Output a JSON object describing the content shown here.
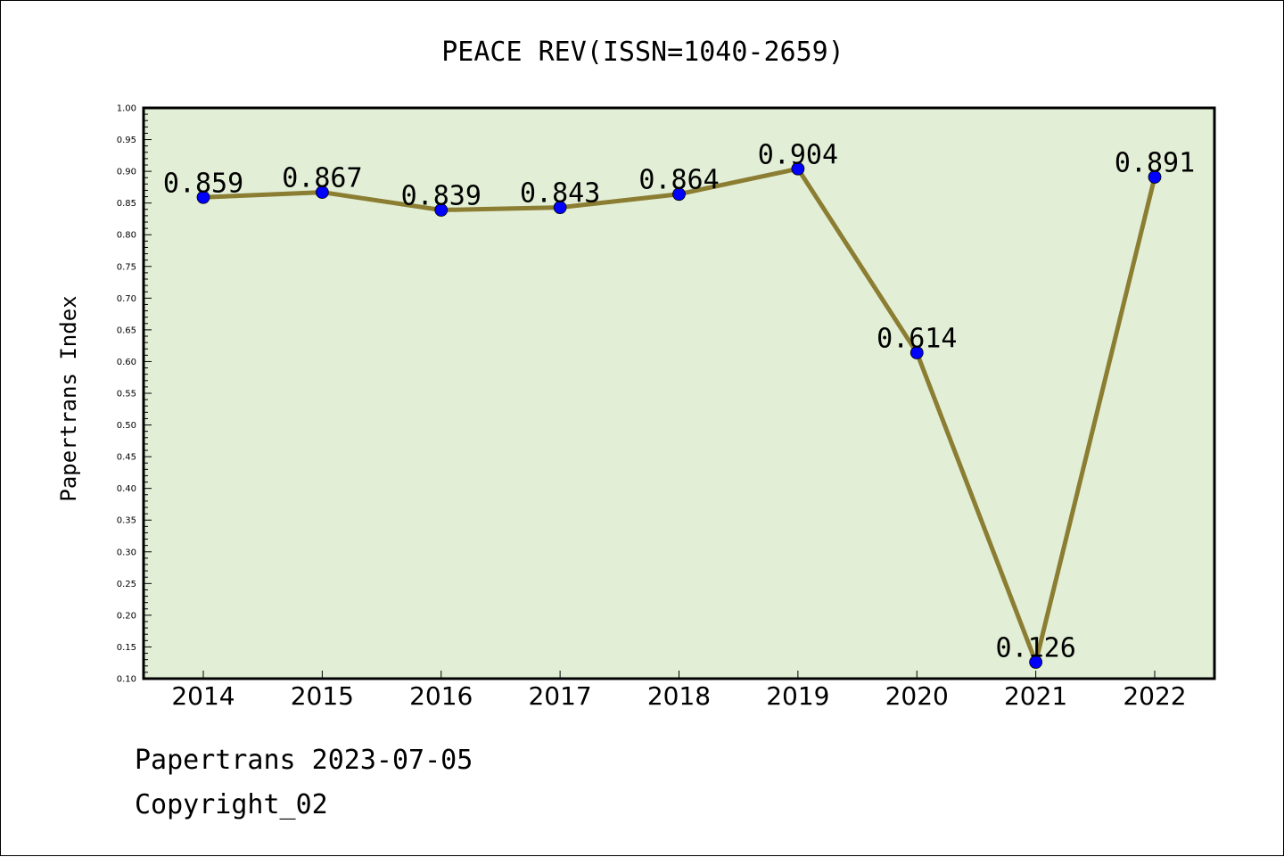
{
  "footer": {
    "line1": "Papertrans 2023-07-05",
    "line2": "Copyright_02"
  },
  "chart_data": {
    "type": "line",
    "title": "PEACE REV(ISSN=1040-2659)",
    "xlabel": "",
    "ylabel": "Papertrans Index",
    "categories": [
      "2014",
      "2015",
      "2016",
      "2017",
      "2018",
      "2019",
      "2020",
      "2021",
      "2022"
    ],
    "series": [
      {
        "values": [
          0.859,
          0.867,
          0.839,
          0.843,
          0.864,
          0.904,
          0.614,
          0.126,
          0.891
        ],
        "labels": [
          "0.859",
          "0.867",
          "0.839",
          "0.843",
          "0.864",
          "0.904",
          "0.614",
          "0.126",
          "0.891"
        ]
      }
    ],
    "ylim": [
      0.1,
      1.0
    ],
    "yticks": [
      "0.10",
      "0.15",
      "0.20",
      "0.25",
      "0.30",
      "0.35",
      "0.40",
      "0.45",
      "0.50",
      "0.55",
      "0.60",
      "0.65",
      "0.70",
      "0.75",
      "0.80",
      "0.85",
      "0.90",
      "0.95",
      "1.00"
    ],
    "grid": false,
    "legend": "none",
    "colors": {
      "plot_background": "#e2efd6",
      "line": "#8b7d32",
      "marker": "#0000ff"
    }
  }
}
